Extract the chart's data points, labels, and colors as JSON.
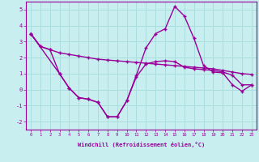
{
  "xlabel": "Windchill (Refroidissement éolien,°C)",
  "background_color": "#c8eef0",
  "grid_color": "#aadddd",
  "line_color": "#990099",
  "series1_x": [
    0,
    1,
    2,
    3,
    4,
    5,
    6,
    7,
    8,
    9,
    10,
    11,
    12,
    13,
    14,
    15,
    16,
    17,
    18,
    19,
    20,
    21,
    22,
    23
  ],
  "series1_y": [
    3.5,
    2.7,
    2.5,
    2.3,
    2.2,
    2.1,
    2.0,
    1.9,
    1.85,
    1.8,
    1.75,
    1.7,
    1.65,
    1.6,
    1.55,
    1.5,
    1.45,
    1.4,
    1.35,
    1.3,
    1.2,
    1.1,
    1.0,
    0.95
  ],
  "series2_x": [
    0,
    3,
    4,
    5,
    6,
    7,
    8,
    9,
    10,
    11,
    12,
    13,
    14,
    15,
    16,
    17,
    18,
    19,
    20,
    21,
    22,
    23
  ],
  "series2_y": [
    3.5,
    1.0,
    0.1,
    -0.5,
    -0.6,
    -0.8,
    -1.7,
    -1.7,
    -0.7,
    0.9,
    2.6,
    3.5,
    3.8,
    5.2,
    4.6,
    3.2,
    1.5,
    1.1,
    1.05,
    0.3,
    -0.1,
    0.3
  ],
  "series3_x": [
    0,
    1,
    2,
    3,
    4,
    5,
    6,
    7,
    8,
    9,
    10,
    11,
    12,
    13,
    14,
    15,
    16,
    17,
    18,
    19,
    20,
    21,
    22,
    23
  ],
  "series3_y": [
    3.5,
    2.7,
    2.5,
    1.0,
    0.1,
    -0.5,
    -0.6,
    -0.8,
    -1.7,
    -1.7,
    -0.7,
    0.8,
    1.6,
    1.75,
    1.8,
    1.75,
    1.4,
    1.3,
    1.25,
    1.2,
    1.1,
    0.9,
    0.3,
    0.3
  ],
  "ylim": [
    -2.5,
    5.5
  ],
  "xlim": [
    -0.5,
    23.5
  ],
  "yticks": [
    -2,
    -1,
    0,
    1,
    2,
    3,
    4,
    5
  ],
  "xticks": [
    0,
    1,
    2,
    3,
    4,
    5,
    6,
    7,
    8,
    9,
    10,
    11,
    12,
    13,
    14,
    15,
    16,
    17,
    18,
    19,
    20,
    21,
    22,
    23
  ]
}
